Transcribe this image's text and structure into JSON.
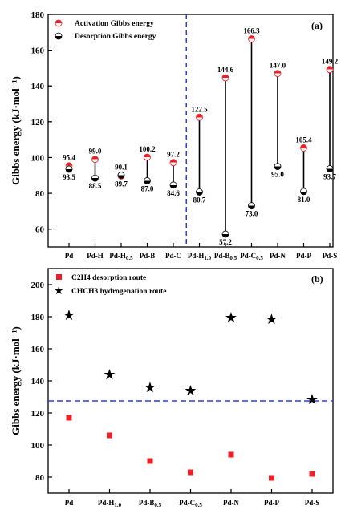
{
  "chart_data": [
    {
      "type": "scatter",
      "panel_label": "(a)",
      "ylabel": "Gibbs energy (kJ·mol⁻¹)",
      "ylim": [
        50,
        180
      ],
      "yticks": [
        60,
        80,
        100,
        120,
        140,
        160,
        180
      ],
      "legend_position": "top-left",
      "categories": [
        "Pd",
        "Pd-H",
        "Pd-H0.5",
        "Pd-B",
        "Pd-C",
        "Pd-H1.0",
        "Pd-B0.5",
        "Pd-C0.5",
        "Pd-N",
        "Pd-P",
        "Pd-S"
      ],
      "divider_after_index": 4,
      "series": [
        {
          "name": "Activation Gibbs energy",
          "color": "#e8222a",
          "values": [
            95.4,
            99.0,
            89.7,
            100.2,
            97.2,
            122.5,
            144.6,
            166.3,
            147.0,
            105.4,
            149.2
          ]
        },
        {
          "name": "Desorption Gibbs energy",
          "color": "#000000",
          "values": [
            93.5,
            88.5,
            90.1,
            87.0,
            84.6,
            80.7,
            57.2,
            73.0,
            95.0,
            81.0,
            93.7
          ]
        }
      ]
    },
    {
      "type": "scatter",
      "panel_label": "(b)",
      "ylabel": "Gibbs energy (kJ·mol⁻¹)",
      "ylim": [
        70,
        210
      ],
      "yticks": [
        80,
        100,
        120,
        140,
        160,
        180,
        200
      ],
      "legend_position": "top-left",
      "categories": [
        "Pd",
        "Pd-H1.0",
        "Pd-B0.5",
        "Pd-C0.5",
        "Pd-N",
        "Pd-P",
        "Pd-S"
      ],
      "reference_line": 127.5,
      "series": [
        {
          "name": "C2H4 desorption route",
          "color": "#e8222a",
          "marker": "square",
          "values": [
            117,
            106,
            90,
            83,
            94,
            79.5,
            82
          ]
        },
        {
          "name": "CHCH3 hydrogenation route",
          "color": "#000000",
          "marker": "star",
          "values": [
            181,
            144,
            136,
            134,
            179.5,
            178.5,
            128.5
          ]
        }
      ]
    }
  ]
}
